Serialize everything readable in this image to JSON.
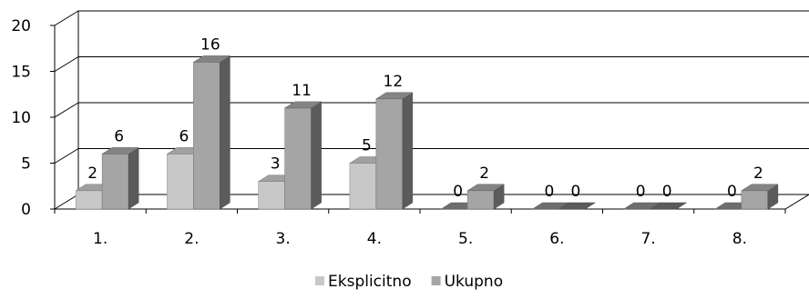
{
  "chart_data": {
    "type": "bar",
    "title": "",
    "xlabel": "",
    "ylabel": "",
    "categories": [
      "1.",
      "2.",
      "3.",
      "4.",
      "5.",
      "6.",
      "7.",
      "8."
    ],
    "series": [
      {
        "name": "Eksplicitno",
        "values": [
          2,
          6,
          3,
          5,
          0,
          0,
          0,
          0
        ],
        "color": "#c8c8c8"
      },
      {
        "name": "Ukupno",
        "values": [
          6,
          16,
          11,
          12,
          2,
          0,
          0,
          2
        ],
        "color": "#a5a5a5"
      }
    ],
    "ylim": [
      0,
      20
    ],
    "yticks": [
      "0",
      "5",
      "10",
      "15",
      "20"
    ],
    "grid": true,
    "legend_position": "bottom",
    "style": "3d-clustered-column"
  }
}
